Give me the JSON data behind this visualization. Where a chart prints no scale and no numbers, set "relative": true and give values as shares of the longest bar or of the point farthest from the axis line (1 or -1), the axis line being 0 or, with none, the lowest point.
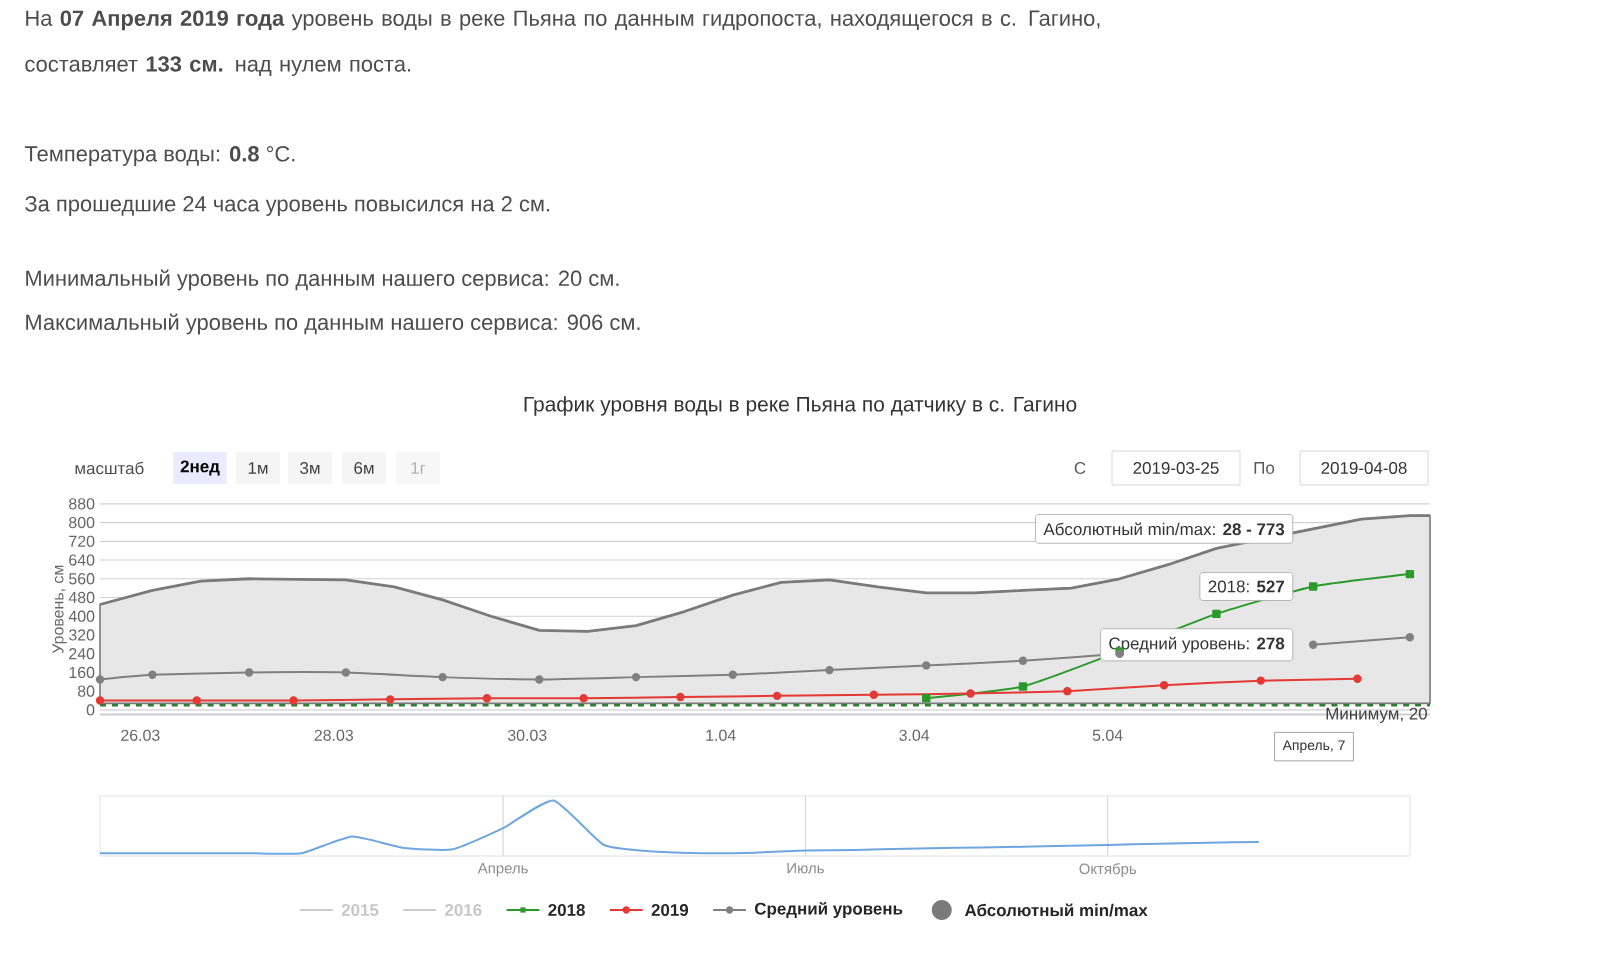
{
  "chart_data": [
    {
      "type": "line",
      "title": "График уровня воды в реке Пьяна по датчику в с. Гагино",
      "ylabel": "Уровень, см",
      "xlim": [
        "2019-03-25T14:00",
        "2019-04-08T08:00"
      ],
      "xticks": [
        {
          "value": "2019-03-26",
          "label": "26.03"
        },
        {
          "value": "2019-03-28",
          "label": "28.03"
        },
        {
          "value": "2019-03-30",
          "label": "30.03"
        },
        {
          "value": "2019-04-01",
          "label": "1.04"
        },
        {
          "value": "2019-04-03",
          "label": "3.04"
        },
        {
          "value": "2019-04-05",
          "label": "5.04"
        }
      ],
      "ylim": [
        -20,
        880
      ],
      "yticks": [
        0,
        80,
        160,
        240,
        320,
        400,
        480,
        560,
        640,
        720,
        800,
        880
      ],
      "grid": "y",
      "legend": "bottom",
      "series": [
        {
          "name": "2015",
          "color": "#cccccc"
        },
        {
          "name": "2016",
          "color": "#cccccc"
        },
        {
          "name": "2018",
          "color": "#2a9a2a",
          "marker": "square",
          "x": [
            "2019-04-03T03:00",
            "2019-04-04T03:00",
            "2019-04-05T03:00",
            "2019-04-06T03:00",
            "2019-04-07T03:00",
            "2019-04-08T03:00"
          ],
          "values": [
            50,
            100,
            250,
            410,
            527,
            580
          ]
        },
        {
          "name": "2019",
          "color": "#e53935",
          "marker": "circle",
          "x": [
            "2019-03-25T14:00",
            "2019-03-26T14:00",
            "2019-03-27T14:00",
            "2019-03-28T14:00",
            "2019-03-29T14:00",
            "2019-03-30T14:00",
            "2019-03-31T14:00",
            "2019-04-01T14:00",
            "2019-04-02T14:00",
            "2019-04-03T14:00",
            "2019-04-04T14:00",
            "2019-04-05T14:00",
            "2019-04-06T14:00",
            "2019-04-07T14:00"
          ],
          "values": [
            40,
            40,
            40,
            45,
            50,
            50,
            55,
            60,
            65,
            70,
            80,
            105,
            125,
            133
          ]
        },
        {
          "name": "Средний уровень",
          "color": "#808080",
          "marker": "circle",
          "x": [
            "2019-03-25T14:00",
            "2019-03-26T03:00",
            "2019-03-27T03:00",
            "2019-03-28T03:00",
            "2019-03-29T03:00",
            "2019-03-30T03:00",
            "2019-03-31T03:00",
            "2019-04-01T03:00",
            "2019-04-02T03:00",
            "2019-04-03T03:00",
            "2019-04-04T03:00",
            "2019-04-05T03:00",
            "2019-04-06T03:00",
            "2019-04-07T03:00",
            "2019-04-08T03:00"
          ],
          "values": [
            130,
            150,
            160,
            160,
            140,
            130,
            140,
            150,
            170,
            190,
            210,
            240,
            null,
            278,
            310
          ]
        },
        {
          "name": "Абсолютный min/max",
          "color": "#7a7a7a",
          "x": [
            "2019-03-25T14:00",
            "2019-03-26T03:00",
            "2019-03-26T15:00",
            "2019-03-27T03:00",
            "2019-03-28T03:00",
            "2019-03-28T15:00",
            "2019-03-29T03:00",
            "2019-03-29T15:00",
            "2019-03-30T03:00",
            "2019-03-30T15:00",
            "2019-03-31T03:00",
            "2019-03-31T15:00",
            "2019-04-01T03:00",
            "2019-04-01T15:00",
            "2019-04-02T03:00",
            "2019-04-02T15:00",
            "2019-04-03T03:00",
            "2019-04-03T15:00",
            "2019-04-04T03:00",
            "2019-04-04T15:00",
            "2019-04-05T03:00",
            "2019-04-05T15:00",
            "2019-04-06T03:00",
            "2019-04-07T03:00",
            "2019-04-07T15:00",
            "2019-04-08T03:00",
            "2019-04-08T08:00"
          ],
          "lower": [
            28,
            28,
            28,
            28,
            28,
            28,
            28,
            28,
            28,
            28,
            28,
            28,
            28,
            28,
            28,
            28,
            28,
            28,
            28,
            28,
            28,
            28,
            28,
            28,
            28,
            28,
            28
          ],
          "upper": [
            450,
            510,
            550,
            560,
            555,
            525,
            470,
            400,
            340,
            335,
            360,
            420,
            490,
            545,
            555,
            525,
            500,
            500,
            510,
            520,
            560,
            620,
            690,
            773,
            815,
            830,
            830
          ],
          "values": [
            450,
            510,
            550,
            560,
            555,
            525,
            470,
            400,
            340,
            335,
            360,
            420,
            490,
            545,
            555,
            525,
            500,
            500,
            510,
            520,
            560,
            620,
            690,
            773,
            815,
            830,
            830
          ]
        }
      ],
      "ref_lines": [
        {
          "axis": "y",
          "value": 20,
          "label": "Минимум, 20",
          "color": "#2e7d32",
          "line_style": "dashed"
        }
      ],
      "annotations": [
        "На **07 Апреля 2019 года** уровень воды в реке Пьяна по данным гидропоста, находящегося в с. Гагино, составляет **133 см.** над нулем поста.",
        "Температура воды: **0.8** °C.",
        "За прошедшие 24 часа уровень повысился на 2 см.",
        "Минимальный уровень по данным нашего сервиса: 20 см.",
        "Максимальный уровень по данным нашего сервиса: 906 см.",
        "масштаб",
        "2нед",
        "1м",
        "3м",
        "6м",
        "1г",
        "С",
        "2019-03-25",
        "По",
        "2019-04-08",
        {
          "text": "Абсолютный min/max: **28 - 773**",
          "x": "2019-04-07T03:00",
          "y": 773
        },
        {
          "text": "2018: **527**",
          "x": "2019-04-07T03:00",
          "y": 527
        },
        {
          "text": "Средний уровень: **278**",
          "x": "2019-04-07T03:00",
          "y": 278
        },
        "Апрель, 7"
      ]
    },
    {
      "type": "line",
      "relative": true,
      "color": "#6ea6e0",
      "grid": "x",
      "categories": [
        null,
        null,
        null,
        null,
        null,
        null,
        null,
        null,
        "Апрель",
        null,
        null,
        null,
        null,
        null,
        "Июль",
        null,
        null,
        null,
        null,
        null,
        "Октябрь",
        null,
        null,
        null,
        null,
        null,
        null
      ],
      "values": [
        0.05,
        0.05,
        0.05,
        0.05,
        0.05,
        0.35,
        0.15,
        0.12,
        0.5,
        1.0,
        0.2,
        0.08,
        0.05,
        0.06,
        0.1,
        0.11,
        0.13,
        0.15,
        0.16,
        0.18,
        0.2,
        0.22,
        0.24,
        0.25,
        null,
        null,
        null
      ]
    }
  ]
}
